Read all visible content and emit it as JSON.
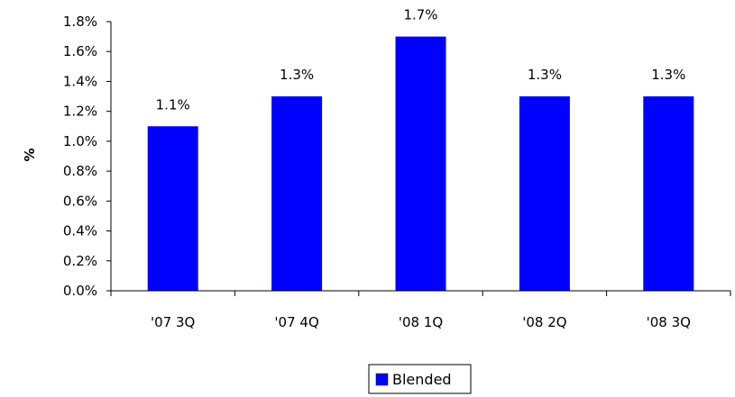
{
  "chart_data": {
    "type": "bar",
    "title": "",
    "xlabel": "",
    "ylabel": "%",
    "categories": [
      "'07 3Q",
      "'07 4Q",
      "'08 1Q",
      "'08 2Q",
      "'08 3Q"
    ],
    "series": [
      {
        "name": "Blended",
        "values": [
          1.1,
          1.3,
          1.7,
          1.3,
          1.3
        ],
        "value_labels": [
          "1.1%",
          "1.3%",
          "1.7%",
          "1.3%",
          "1.3%"
        ],
        "color": "#0000ff"
      }
    ],
    "ylim": [
      0,
      1.8
    ],
    "yticks": [
      0.0,
      0.2,
      0.4,
      0.6,
      0.8,
      1.0,
      1.2,
      1.4,
      1.6,
      1.8
    ],
    "ytick_labels": [
      "0.0%",
      "0.2%",
      "0.4%",
      "0.6%",
      "0.8%",
      "1.0%",
      "1.2%",
      "1.4%",
      "1.6%",
      "1.8%"
    ],
    "grid": false,
    "legend_position": "bottom-center"
  }
}
